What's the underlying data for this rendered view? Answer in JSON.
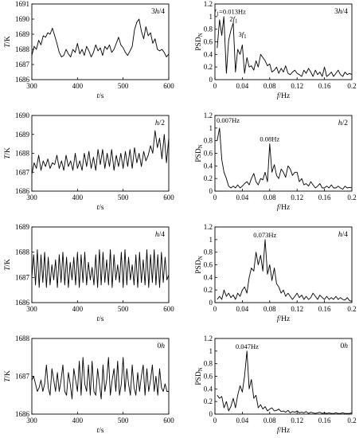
{
  "chart_data": [
    {
      "type": "line",
      "panel_label": "3h/4",
      "xlabel": "t/s",
      "ylabel": "T/K",
      "xlim": [
        300,
        600
      ],
      "ylim": [
        1686,
        1691
      ],
      "xticks": [
        "300",
        "400",
        "500",
        "600"
      ],
      "yticks": [
        "1686",
        "1687",
        "1688",
        "1689",
        "1690",
        "1691"
      ],
      "x": [
        300,
        305,
        310,
        315,
        320,
        325,
        330,
        335,
        340,
        345,
        350,
        355,
        360,
        365,
        370,
        375,
        380,
        385,
        390,
        395,
        400,
        405,
        410,
        415,
        420,
        425,
        430,
        435,
        440,
        445,
        450,
        455,
        460,
        465,
        470,
        475,
        480,
        485,
        490,
        495,
        500,
        505,
        510,
        515,
        520,
        525,
        530,
        535,
        540,
        545,
        550,
        555,
        560,
        565,
        570,
        575,
        580,
        585,
        590,
        595,
        600
      ],
      "y": [
        1687.6,
        1688.2,
        1688.0,
        1688.6,
        1688.3,
        1688.9,
        1688.8,
        1689.1,
        1689.0,
        1689.4,
        1688.9,
        1688.4,
        1687.8,
        1687.5,
        1687.6,
        1688.0,
        1687.7,
        1687.5,
        1688.0,
        1687.8,
        1688.4,
        1687.7,
        1688.0,
        1687.6,
        1688.2,
        1687.9,
        1687.5,
        1687.8,
        1688.3,
        1687.9,
        1688.1,
        1687.6,
        1688.2,
        1688.0,
        1688.3,
        1687.8,
        1688.0,
        1688.4,
        1688.8,
        1688.3,
        1688.1,
        1687.8,
        1687.6,
        1687.9,
        1688.2,
        1689.3,
        1689.8,
        1690.0,
        1689.2,
        1688.7,
        1689.5,
        1688.9,
        1689.1,
        1688.4,
        1688.7,
        1688.0,
        1687.9,
        1688.0,
        1687.8,
        1687.5,
        1687.7
      ]
    },
    {
      "type": "line",
      "panel_label": "3h/4",
      "xlabel": "f/Hz",
      "ylabel": "PSDN",
      "xlim": [
        0,
        0.2
      ],
      "ylim": [
        0,
        1.2
      ],
      "xticks": [
        "0",
        "0.04",
        "0.08",
        "0.12",
        "0.16",
        "0.2"
      ],
      "yticks": [
        "0",
        "0.2",
        "0.4",
        "0.6",
        "0.8",
        "1",
        "1.2"
      ],
      "annotations": [
        {
          "text": "f1=0.013Hz",
          "x": 0.013,
          "y": 1.0
        },
        {
          "text": "2f1",
          "x": 0.026,
          "y": 0.95
        },
        {
          "text": "3f1",
          "x": 0.039,
          "y": 0.65
        }
      ],
      "x": [
        0.0033,
        0.0067,
        0.01,
        0.013,
        0.0167,
        0.02,
        0.0233,
        0.0267,
        0.03,
        0.0333,
        0.0367,
        0.04,
        0.0433,
        0.0467,
        0.05,
        0.0533,
        0.0567,
        0.06,
        0.0633,
        0.0667,
        0.07,
        0.0733,
        0.0767,
        0.08,
        0.0833,
        0.0867,
        0.09,
        0.0933,
        0.0967,
        0.1,
        0.1033,
        0.1067,
        0.11,
        0.1133,
        0.1167,
        0.12,
        0.1233,
        0.1267,
        0.13,
        0.1333,
        0.1367,
        0.14,
        0.1433,
        0.1467,
        0.15,
        0.1533,
        0.1567,
        0.16,
        0.1633,
        0.1667,
        0.17,
        0.1733,
        0.1767,
        0.18,
        0.1833,
        0.1867,
        0.19,
        0.1933,
        0.1967,
        0.2
      ],
      "y": [
        0.5,
        0.95,
        0.7,
        1.0,
        0.1,
        0.62,
        0.78,
        0.9,
        0.12,
        0.48,
        0.4,
        0.55,
        0.1,
        0.35,
        0.2,
        0.22,
        0.15,
        0.3,
        0.2,
        0.4,
        0.35,
        0.3,
        0.22,
        0.25,
        0.12,
        0.15,
        0.2,
        0.1,
        0.18,
        0.12,
        0.22,
        0.1,
        0.08,
        0.12,
        0.15,
        0.1,
        0.08,
        0.05,
        0.15,
        0.1,
        0.18,
        0.12,
        0.05,
        0.15,
        0.08,
        0.12,
        0.05,
        0.2,
        0.05,
        0.08,
        0.12,
        0.05,
        0.1,
        0.15,
        0.08,
        0.05,
        0.12,
        0.08,
        0.1,
        0.08
      ]
    },
    {
      "type": "line",
      "panel_label": "h/2",
      "xlabel": "t/s",
      "ylabel": "T/K",
      "xlim": [
        300,
        600
      ],
      "ylim": [
        1686,
        1690
      ],
      "xticks": [
        "300",
        "400",
        "500",
        "600"
      ],
      "yticks": [
        "1686",
        "1687",
        "1688",
        "1689",
        "1690"
      ],
      "x": [
        300,
        305,
        310,
        315,
        320,
        325,
        330,
        335,
        340,
        345,
        350,
        355,
        360,
        365,
        370,
        375,
        380,
        385,
        390,
        395,
        400,
        405,
        410,
        415,
        420,
        425,
        430,
        435,
        440,
        445,
        450,
        455,
        460,
        465,
        470,
        475,
        480,
        485,
        490,
        495,
        500,
        505,
        510,
        515,
        520,
        525,
        530,
        535,
        540,
        545,
        550,
        555,
        560,
        565,
        570,
        575,
        580,
        585,
        590,
        595,
        600
      ],
      "y": [
        1686.9,
        1687.5,
        1687.2,
        1687.9,
        1687.1,
        1687.6,
        1687.3,
        1687.7,
        1687.2,
        1687.5,
        1687.4,
        1687.9,
        1687.2,
        1687.6,
        1687.1,
        1687.9,
        1687.3,
        1687.6,
        1687.1,
        1688.0,
        1687.2,
        1687.6,
        1687.1,
        1688.0,
        1687.3,
        1688.1,
        1687.2,
        1687.8,
        1687.1,
        1688.2,
        1687.4,
        1688.2,
        1687.2,
        1688.0,
        1687.3,
        1688.2,
        1687.1,
        1687.9,
        1687.3,
        1688.0,
        1687.2,
        1688.1,
        1687.3,
        1688.2,
        1687.2,
        1688.3,
        1687.5,
        1688.0,
        1687.3,
        1688.1,
        1687.6,
        1687.9,
        1688.4,
        1688.0,
        1689.2,
        1688.3,
        1688.8,
        1687.7,
        1689.0,
        1687.5,
        1688.8
      ]
    },
    {
      "type": "line",
      "panel_label": "h/2",
      "xlabel": "f/Hz",
      "ylabel": "PSDN",
      "xlim": [
        0,
        0.2
      ],
      "ylim": [
        0,
        1.2
      ],
      "xticks": [
        "0",
        "0.04",
        "0.08",
        "0.12",
        "0.16",
        "0.2"
      ],
      "yticks": [
        "0",
        "0.2",
        "0.4",
        "0.6",
        "0.8",
        "1",
        "1.2"
      ],
      "annotations": [
        {
          "text": "0.007Hz",
          "x": 0.007,
          "y": 1.0
        },
        {
          "text": "0.08Hz",
          "x": 0.08,
          "y": 0.75
        }
      ],
      "x": [
        0.0033,
        0.0067,
        0.01,
        0.0133,
        0.0167,
        0.02,
        0.0233,
        0.0267,
        0.03,
        0.0333,
        0.0367,
        0.04,
        0.0433,
        0.0467,
        0.05,
        0.0533,
        0.0567,
        0.06,
        0.0633,
        0.0667,
        0.07,
        0.0733,
        0.0767,
        0.08,
        0.0833,
        0.0867,
        0.09,
        0.0933,
        0.0967,
        0.1,
        0.1033,
        0.1067,
        0.11,
        0.1133,
        0.1167,
        0.12,
        0.1233,
        0.1267,
        0.13,
        0.1333,
        0.1367,
        0.14,
        0.1433,
        0.1467,
        0.15,
        0.1533,
        0.1567,
        0.16,
        0.1633,
        0.1667,
        0.17,
        0.1733,
        0.1767,
        0.18,
        0.1833,
        0.1867,
        0.19,
        0.1933,
        0.1967,
        0.2
      ],
      "y": [
        0.8,
        1.0,
        0.5,
        0.3,
        0.2,
        0.08,
        0.05,
        0.08,
        0.05,
        0.1,
        0.05,
        0.08,
        0.12,
        0.15,
        0.1,
        0.2,
        0.28,
        0.15,
        0.1,
        0.2,
        0.18,
        0.3,
        0.15,
        0.75,
        0.3,
        0.42,
        0.25,
        0.2,
        0.35,
        0.3,
        0.22,
        0.4,
        0.35,
        0.25,
        0.3,
        0.3,
        0.15,
        0.2,
        0.1,
        0.12,
        0.08,
        0.15,
        0.1,
        0.05,
        0.08,
        0.12,
        0.05,
        0.05,
        0.08,
        0.05,
        0.1,
        0.05,
        0.05,
        0.08,
        0.05,
        0.03,
        0.08,
        0.05,
        0.06,
        0.05
      ]
    },
    {
      "type": "line",
      "panel_label": "h/4",
      "xlabel": "t/s",
      "ylabel": "T/K",
      "xlim": [
        300,
        600
      ],
      "ylim": [
        1686,
        1689
      ],
      "xticks": [
        "300",
        "400",
        "500",
        "600"
      ],
      "yticks": [
        "1686",
        "1687",
        "1688",
        "1689"
      ],
      "x": [
        300,
        304,
        308,
        312,
        316,
        320,
        324,
        328,
        332,
        336,
        340,
        344,
        348,
        352,
        356,
        360,
        364,
        368,
        372,
        376,
        380,
        384,
        388,
        392,
        396,
        400,
        404,
        408,
        412,
        416,
        420,
        424,
        428,
        432,
        436,
        440,
        444,
        448,
        452,
        456,
        460,
        464,
        468,
        472,
        476,
        480,
        484,
        488,
        492,
        496,
        500,
        504,
        508,
        512,
        516,
        520,
        524,
        528,
        532,
        536,
        540,
        544,
        548,
        552,
        556,
        560,
        564,
        568,
        572,
        576,
        580,
        584,
        588,
        592,
        596,
        600
      ],
      "y": [
        1687.0,
        1687.9,
        1686.7,
        1688.1,
        1686.6,
        1687.9,
        1686.8,
        1688.0,
        1686.6,
        1687.8,
        1686.7,
        1687.5,
        1686.9,
        1687.7,
        1686.6,
        1687.9,
        1686.8,
        1688.0,
        1686.7,
        1687.8,
        1686.6,
        1687.6,
        1686.9,
        1687.8,
        1686.7,
        1688.0,
        1686.6,
        1687.9,
        1686.8,
        1688.0,
        1686.7,
        1687.6,
        1686.9,
        1687.4,
        1686.7,
        1687.9,
        1686.6,
        1688.1,
        1686.7,
        1688.0,
        1686.8,
        1687.7,
        1686.7,
        1688.1,
        1686.6,
        1687.9,
        1686.9,
        1687.5,
        1686.8,
        1688.0,
        1686.6,
        1688.1,
        1686.7,
        1687.8,
        1686.9,
        1687.5,
        1686.7,
        1687.9,
        1686.6,
        1688.0,
        1686.8,
        1687.7,
        1686.7,
        1688.1,
        1686.6,
        1687.9,
        1686.8,
        1688.1,
        1686.7,
        1687.9,
        1686.6,
        1688.0,
        1686.8,
        1687.8,
        1686.9,
        1687.1
      ]
    },
    {
      "type": "line",
      "panel_label": "h/4",
      "xlabel": "f/Hz",
      "ylabel": "PSDN",
      "xlim": [
        0,
        0.2
      ],
      "ylim": [
        0,
        1.2
      ],
      "xticks": [
        "0",
        "0.04",
        "0.08",
        "0.12",
        "0.16",
        "0.2"
      ],
      "yticks": [
        "0",
        "0.2",
        "0.4",
        "0.6",
        "0.8",
        "1",
        "1.2"
      ],
      "annotations": [
        {
          "text": "0.073Hz",
          "x": 0.073,
          "y": 1.0
        }
      ],
      "x": [
        0.0033,
        0.0067,
        0.01,
        0.0133,
        0.0167,
        0.02,
        0.0233,
        0.0267,
        0.03,
        0.0333,
        0.0367,
        0.04,
        0.0433,
        0.0467,
        0.05,
        0.0533,
        0.0567,
        0.06,
        0.0633,
        0.0667,
        0.07,
        0.0733,
        0.0767,
        0.08,
        0.0833,
        0.0867,
        0.09,
        0.0933,
        0.0967,
        0.1,
        0.1033,
        0.1067,
        0.11,
        0.1133,
        0.1167,
        0.12,
        0.1233,
        0.1267,
        0.13,
        0.1333,
        0.1367,
        0.14,
        0.1433,
        0.1467,
        0.15,
        0.1533,
        0.1567,
        0.16,
        0.1633,
        0.1667,
        0.17,
        0.1733,
        0.1767,
        0.18,
        0.1833,
        0.1867,
        0.19,
        0.1933,
        0.1967,
        0.2
      ],
      "y": [
        0.05,
        0.1,
        0.05,
        0.2,
        0.1,
        0.15,
        0.08,
        0.12,
        0.05,
        0.15,
        0.1,
        0.2,
        0.25,
        0.15,
        0.4,
        0.55,
        0.5,
        0.8,
        0.6,
        0.75,
        0.5,
        1.0,
        0.45,
        0.6,
        0.35,
        0.55,
        0.3,
        0.25,
        0.15,
        0.2,
        0.1,
        0.15,
        0.1,
        0.05,
        0.1,
        0.15,
        0.08,
        0.12,
        0.05,
        0.1,
        0.05,
        0.08,
        0.15,
        0.1,
        0.05,
        0.12,
        0.08,
        0.05,
        0.1,
        0.05,
        0.08,
        0.05,
        0.1,
        0.05,
        0.08,
        0.05,
        0.04,
        0.08,
        0.03,
        0.02
      ]
    },
    {
      "type": "line",
      "panel_label": "0h",
      "xlabel": "t/s",
      "ylabel": "T/K",
      "xlim": [
        300,
        600
      ],
      "ylim": [
        1686,
        1688
      ],
      "xticks": [
        "300",
        "400",
        "500",
        "600"
      ],
      "yticks": [
        "1686",
        "1687",
        "1688"
      ],
      "x": [
        300,
        304,
        308,
        312,
        316,
        320,
        324,
        328,
        332,
        336,
        340,
        344,
        348,
        352,
        356,
        360,
        364,
        368,
        372,
        376,
        380,
        384,
        388,
        392,
        396,
        400,
        404,
        408,
        412,
        416,
        420,
        424,
        428,
        432,
        436,
        440,
        444,
        448,
        452,
        456,
        460,
        464,
        468,
        472,
        476,
        480,
        484,
        488,
        492,
        496,
        500,
        504,
        508,
        512,
        516,
        520,
        524,
        528,
        532,
        536,
        540,
        544,
        548,
        552,
        556,
        560,
        564,
        568,
        572,
        576,
        580,
        584,
        588,
        592,
        596,
        600
      ],
      "y": [
        1686.9,
        1687.0,
        1686.8,
        1686.6,
        1686.7,
        1686.9,
        1686.6,
        1686.8,
        1687.3,
        1686.7,
        1686.5,
        1687.2,
        1686.9,
        1686.6,
        1687.1,
        1686.6,
        1686.9,
        1687.3,
        1686.6,
        1686.5,
        1687.1,
        1686.8,
        1686.4,
        1687.2,
        1686.9,
        1686.6,
        1687.4,
        1686.5,
        1687.5,
        1686.8,
        1686.6,
        1687.3,
        1686.5,
        1687.4,
        1686.6,
        1686.5,
        1687.2,
        1686.8,
        1686.4,
        1687.3,
        1686.6,
        1686.9,
        1687.5,
        1686.5,
        1686.9,
        1687.2,
        1686.6,
        1687.4,
        1686.5,
        1686.8,
        1687.5,
        1686.6,
        1687.2,
        1686.8,
        1686.5,
        1687.3,
        1686.7,
        1686.5,
        1687.1,
        1686.6,
        1687.0,
        1687.3,
        1686.5,
        1687.2,
        1686.6,
        1686.9,
        1687.3,
        1686.6,
        1687.0,
        1686.5,
        1687.2,
        1686.7,
        1686.6,
        1686.8,
        1686.6,
        1686.6
      ]
    },
    {
      "type": "line",
      "panel_label": "0h",
      "xlabel": "f/Hz",
      "ylabel": "PSDN",
      "xlim": [
        0,
        0.2
      ],
      "ylim": [
        0,
        1.2
      ],
      "xticks": [
        "0",
        "0.04",
        "0.08",
        "0.12",
        "0.16",
        "0.2"
      ],
      "yticks": [
        "0",
        "0.2",
        "0.4",
        "0.6",
        "0.8",
        "1",
        "1.2"
      ],
      "annotations": [
        {
          "text": "0.047Hz",
          "x": 0.047,
          "y": 1.0
        }
      ],
      "x": [
        0.0033,
        0.0067,
        0.01,
        0.0133,
        0.0167,
        0.02,
        0.0233,
        0.0267,
        0.03,
        0.0333,
        0.0367,
        0.04,
        0.0433,
        0.0467,
        0.05,
        0.0533,
        0.0567,
        0.06,
        0.0633,
        0.0667,
        0.07,
        0.0733,
        0.0767,
        0.08,
        0.0833,
        0.0867,
        0.09,
        0.0933,
        0.0967,
        0.1,
        0.1033,
        0.1067,
        0.11,
        0.1133,
        0.1167,
        0.12,
        0.1233,
        0.1267,
        0.13,
        0.1333,
        0.1367,
        0.14,
        0.1433,
        0.1467,
        0.15,
        0.1533,
        0.1567,
        0.16,
        0.1633,
        0.1667,
        0.17,
        0.1733,
        0.1767,
        0.18,
        0.1833,
        0.1867,
        0.19,
        0.1933,
        0.1967,
        0.2
      ],
      "y": [
        0.3,
        0.25,
        0.28,
        0.1,
        0.2,
        0.05,
        0.12,
        0.25,
        0.1,
        0.3,
        0.45,
        0.35,
        0.6,
        1.0,
        0.4,
        0.55,
        0.25,
        0.3,
        0.1,
        0.15,
        0.08,
        0.12,
        0.05,
        0.08,
        0.1,
        0.05,
        0.06,
        0.08,
        0.04,
        0.05,
        0.03,
        0.06,
        0.02,
        0.04,
        0.03,
        0.05,
        0.02,
        0.03,
        0.02,
        0.04,
        0.01,
        0.03,
        0.02,
        0.01,
        0.02,
        0.03,
        0.01,
        0.02,
        0.01,
        0.02,
        0.01,
        0.01,
        0.02,
        0.01,
        0.01,
        0.02,
        0.01,
        0.01,
        0.01,
        0.02
      ]
    }
  ]
}
